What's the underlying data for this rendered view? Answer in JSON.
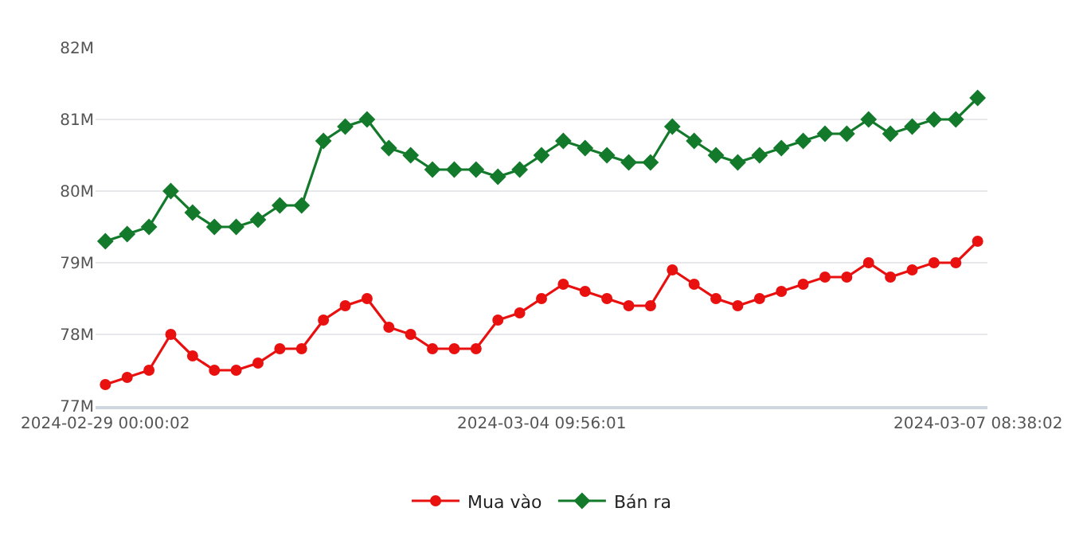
{
  "chart_data": {
    "type": "line",
    "categories": [
      "2024-02-29 00:00:02",
      null,
      null,
      null,
      null,
      null,
      null,
      null,
      null,
      null,
      null,
      null,
      null,
      null,
      null,
      null,
      null,
      null,
      null,
      null,
      "2024-03-04 09:56:01",
      null,
      null,
      null,
      null,
      null,
      null,
      null,
      null,
      null,
      null,
      null,
      null,
      null,
      null,
      null,
      null,
      null,
      null,
      null,
      "2024-03-07 08:38:02"
    ],
    "series": [
      {
        "name": "Mua vào",
        "color": "#e8110f",
        "marker": "circle",
        "values": [
          77.3,
          77.4,
          77.5,
          78.0,
          77.7,
          77.5,
          77.5,
          77.6,
          77.8,
          77.8,
          78.2,
          78.4,
          78.5,
          78.1,
          78.0,
          77.8,
          77.8,
          77.8,
          78.2,
          78.3,
          78.5,
          78.7,
          78.6,
          78.5,
          78.4,
          78.4,
          78.9,
          78.7,
          78.5,
          78.4,
          78.5,
          78.6,
          78.7,
          78.8,
          78.8,
          79.0,
          78.8,
          78.9,
          79.0,
          79.0,
          79.3
        ]
      },
      {
        "name": "Bán ra",
        "color": "#137a2b",
        "marker": "diamond",
        "values": [
          79.3,
          79.4,
          79.5,
          80.0,
          79.7,
          79.5,
          79.5,
          79.6,
          79.8,
          79.8,
          80.7,
          80.9,
          81.0,
          80.6,
          80.5,
          80.3,
          80.3,
          80.3,
          80.2,
          80.3,
          80.5,
          80.7,
          80.6,
          80.5,
          80.4,
          80.4,
          80.9,
          80.7,
          80.5,
          80.4,
          80.5,
          80.6,
          80.7,
          80.8,
          80.8,
          81.0,
          80.8,
          80.9,
          81.0,
          81.0,
          81.3
        ]
      }
    ],
    "ylim": [
      77,
      82
    ],
    "yticks": [
      {
        "value": 77,
        "label": "77M"
      },
      {
        "value": 78,
        "label": "78M"
      },
      {
        "value": 79,
        "label": "79M"
      },
      {
        "value": 80,
        "label": "80M"
      },
      {
        "value": 81,
        "label": "81M"
      },
      {
        "value": 82,
        "label": "82M"
      }
    ],
    "grid": "y",
    "legend": "bottom",
    "line_style": "solid"
  }
}
